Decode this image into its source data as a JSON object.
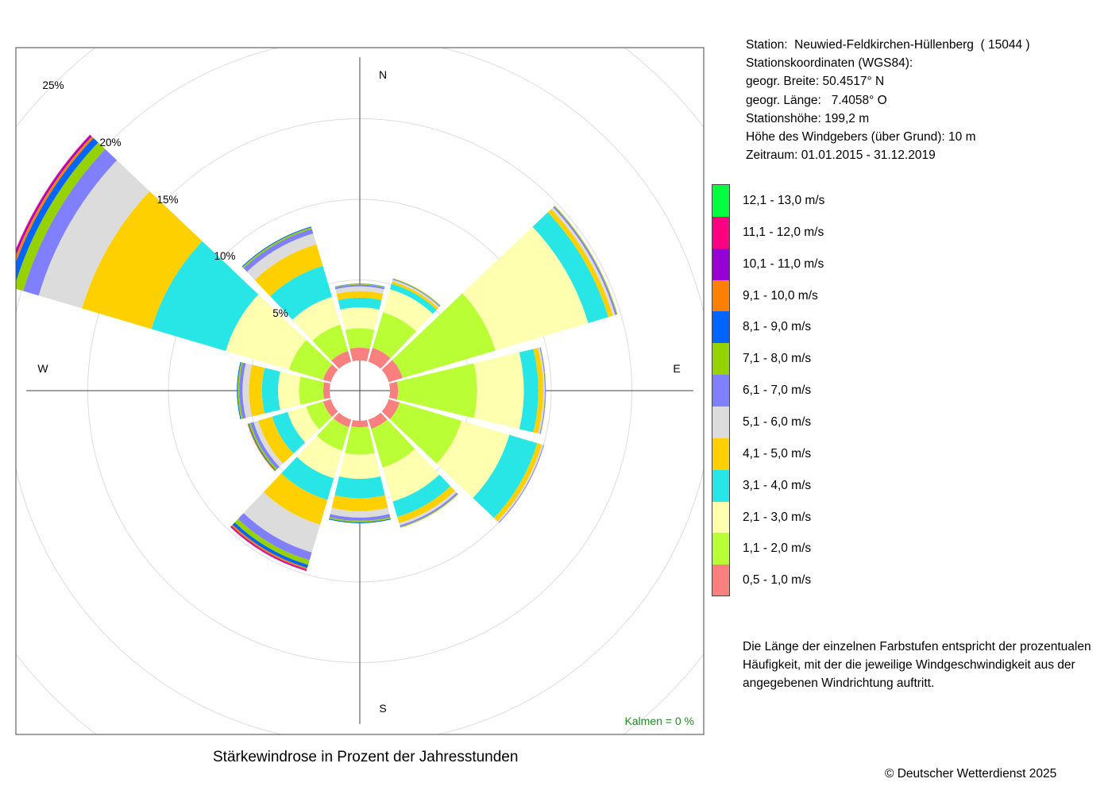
{
  "station_info": {
    "station": "Station:  Neuwied-Feldkirchen-Hüllenberg  ( 15044 )",
    "coordinates_heading": "Stationskoordinaten (WGS84):",
    "latitude": "geogr. Breite: 50.4517° N",
    "longitude": "geogr. Länge:   7.4058° O",
    "elevation": "Stationshöhe: 199,2 m",
    "sensor_height": "Höhe des Windgebers (über Grund): 10 m",
    "period": "Zeitraum: 01.01.2015 - 31.12.2019"
  },
  "note": "Die Länge der einzelnen Farbstufen entspricht der prozentualen Häufigkeit, mit der die jeweilige Windgeschwindigkeit aus der angegebenen Windrichtung auftritt.",
  "caption": "Stärkewindrose in Prozent der Jahresstunden",
  "copyright": "© Deutscher Wetterdienst  2025",
  "calms": "Kalmen  =  0 %",
  "compass": {
    "north": "N",
    "east": "E",
    "south": "S",
    "west": "W"
  },
  "colors": {
    "calms_text": "#228B22",
    "grid": "#dddddd",
    "axis": "#444444"
  },
  "chart_data": {
    "type": "wind-rose",
    "title": "Stärkewindrose in Prozent der Jahresstunden",
    "directions_deg": [
      0,
      30,
      60,
      90,
      120,
      150,
      180,
      210,
      240,
      270,
      300,
      330
    ],
    "radial_ticks": [
      5,
      10,
      15,
      20,
      25
    ],
    "radial_tick_labels": [
      "5%",
      "10%",
      "15%",
      "20%",
      "25%"
    ],
    "unit": "%",
    "classes": [
      {
        "label": "0,5 - 1,0 m/s",
        "color": "#FA8080"
      },
      {
        "label": "1,1 - 2,0 m/s",
        "color": "#BAFF36"
      },
      {
        "label": "2,1 - 3,0 m/s",
        "color": "#FFFFB0"
      },
      {
        "label": "3,1 - 4,0 m/s",
        "color": "#28E6E6"
      },
      {
        "label": "4,1 - 5,0 m/s",
        "color": "#FFD000"
      },
      {
        "label": "5,1 - 6,0 m/s",
        "color": "#DCDCDC"
      },
      {
        "label": "6,1 - 7,0 m/s",
        "color": "#8080FF"
      },
      {
        "label": "7,1 - 8,0 m/s",
        "color": "#96D200"
      },
      {
        "label": "8,1 - 9,0 m/s",
        "color": "#0064FF"
      },
      {
        "label": "9,1 - 10,0 m/s",
        "color": "#FF8000"
      },
      {
        "label": "10,1 - 11,0 m/s",
        "color": "#9600D2"
      },
      {
        "label": "11,1 - 12,0 m/s",
        "color": "#FF0080"
      },
      {
        "label": "12,1 - 13,0 m/s",
        "color": "#00FF40"
      }
    ],
    "series": [
      {
        "direction": 0,
        "values": [
          0.8,
          1.2,
          1.3,
          0.6,
          0.4,
          0.3,
          0.1,
          0.05,
          0.02,
          0,
          0,
          0,
          0
        ]
      },
      {
        "direction": 30,
        "values": [
          0.9,
          2.3,
          1.5,
          0.35,
          0.15,
          0.1,
          0.05,
          0.05,
          0,
          0,
          0,
          0,
          0
        ]
      },
      {
        "direction": 60,
        "values": [
          0.9,
          6.0,
          6.0,
          1.3,
          0.3,
          0.15,
          0.1,
          0.05,
          0,
          0,
          0,
          0,
          0
        ]
      },
      {
        "direction": 90,
        "values": [
          0.5,
          4.9,
          2.9,
          0.9,
          0.3,
          0.1,
          0.05,
          0.02,
          0,
          0,
          0,
          0,
          0
        ]
      },
      {
        "direction": 120,
        "values": [
          0.7,
          4.0,
          3.1,
          1.8,
          0.3,
          0.1,
          0.05,
          0,
          0,
          0,
          0,
          0,
          0
        ]
      },
      {
        "direction": 150,
        "values": [
          0.6,
          2.5,
          2.2,
          1.0,
          0.4,
          0.15,
          0.1,
          0.05,
          0,
          0,
          0,
          0,
          0
        ]
      },
      {
        "direction": 180,
        "values": [
          0.4,
          1.7,
          1.5,
          1.2,
          0.8,
          0.4,
          0.2,
          0.1,
          0.05,
          0,
          0,
          0,
          0
        ]
      },
      {
        "direction": 210,
        "values": [
          0.5,
          1.5,
          1.8,
          1.4,
          1.6,
          1.8,
          0.5,
          0.3,
          0.2,
          0.1,
          0.05,
          0.05,
          0
        ]
      },
      {
        "direction": 240,
        "values": [
          0.5,
          1.1,
          1.2,
          1.0,
          0.9,
          0.3,
          0.2,
          0.1,
          0.05,
          0.05,
          0,
          0,
          0
        ]
      },
      {
        "direction": 270,
        "values": [
          0.4,
          1.5,
          1.3,
          1.0,
          0.8,
          0.4,
          0.2,
          0.1,
          0.05,
          0,
          0,
          0,
          0
        ]
      },
      {
        "direction": 300,
        "values": [
          0.5,
          2.2,
          4.1,
          4.8,
          4.5,
          2.8,
          1.0,
          0.6,
          0.4,
          0.15,
          0.1,
          0.05,
          0
        ]
      },
      {
        "direction": 330,
        "values": [
          0.7,
          1.7,
          1.8,
          2.0,
          1.4,
          0.7,
          0.3,
          0.1,
          0.05,
          0,
          0,
          0,
          0
        ]
      }
    ],
    "calms": 0,
    "grid": true,
    "legend_position": "right"
  }
}
